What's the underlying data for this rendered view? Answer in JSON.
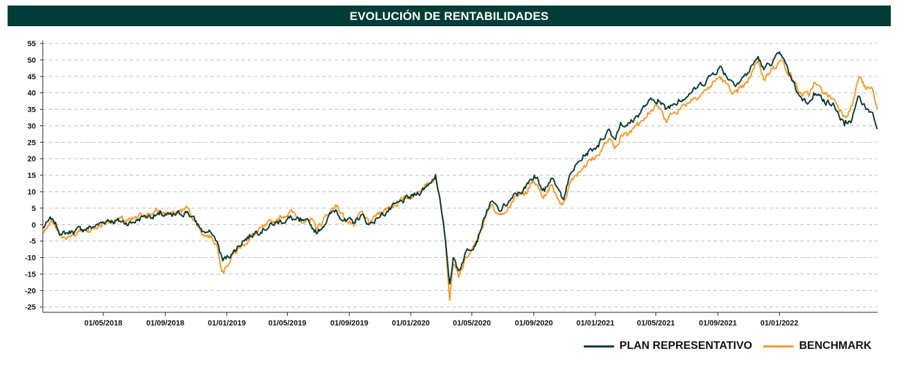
{
  "colors": {
    "title_bg": "#003d36",
    "plan": "#0b3a34",
    "benchmark": "#f59a2e",
    "grid": "#bdbdbd"
  },
  "chart_data": {
    "type": "line",
    "title": "EVOLUCIÓN DE RENTABILIDADES",
    "xlabel": "",
    "ylabel": "",
    "x_range": [
      "2018-01-01",
      "2022-07-15"
    ],
    "ylim": [
      -26,
      55
    ],
    "yticks": [
      55,
      50,
      45,
      40,
      35,
      30,
      25,
      20,
      15,
      10,
      5,
      0,
      -5,
      -10,
      -15,
      -20,
      -25
    ],
    "xticks": [
      "01/05/2018",
      "01/09/2018",
      "01/01/2019",
      "01/05/2019",
      "01/09/2019",
      "01/01/2020",
      "01/05/2020",
      "01/09/2020",
      "01/01/2021",
      "01/05/2021",
      "01/09/2021",
      "01/01/2022"
    ],
    "xtick_dates": [
      "2018-05-01",
      "2018-09-01",
      "2019-01-01",
      "2019-05-01",
      "2019-09-01",
      "2020-01-01",
      "2020-05-01",
      "2020-09-01",
      "2021-01-01",
      "2021-05-01",
      "2021-09-01",
      "2022-01-01"
    ],
    "grid": true,
    "legend_position": "bottom-right",
    "series": [
      {
        "name": "PLAN REPRESENTATIVO",
        "color": "#0b3a34",
        "points": [
          [
            "2018-01-01",
            -1
          ],
          [
            "2018-01-20",
            1.8
          ],
          [
            "2018-02-08",
            -3
          ],
          [
            "2018-03-01",
            -2
          ],
          [
            "2018-03-20",
            -1.5
          ],
          [
            "2018-04-15",
            -0.5
          ],
          [
            "2018-05-10",
            1.5
          ],
          [
            "2018-06-01",
            1
          ],
          [
            "2018-06-25",
            0.5
          ],
          [
            "2018-07-20",
            2.5
          ],
          [
            "2018-08-20",
            3
          ],
          [
            "2018-09-15",
            2.5
          ],
          [
            "2018-10-15",
            4
          ],
          [
            "2018-10-30",
            1
          ],
          [
            "2018-11-15",
            -2
          ],
          [
            "2018-12-01",
            -2.5
          ],
          [
            "2018-12-12",
            -5
          ],
          [
            "2018-12-24",
            -11
          ],
          [
            "2019-01-10",
            -9
          ],
          [
            "2019-02-01",
            -5
          ],
          [
            "2019-03-01",
            -2
          ],
          [
            "2019-04-01",
            0
          ],
          [
            "2019-05-05",
            2
          ],
          [
            "2019-05-25",
            1
          ],
          [
            "2019-06-15",
            0
          ],
          [
            "2019-06-30",
            -2.5
          ],
          [
            "2019-07-20",
            2
          ],
          [
            "2019-08-05",
            4.5
          ],
          [
            "2019-08-25",
            1
          ],
          [
            "2019-09-10",
            0.5
          ],
          [
            "2019-09-25",
            3
          ],
          [
            "2019-10-10",
            0
          ],
          [
            "2019-10-25",
            2
          ],
          [
            "2019-11-15",
            4
          ],
          [
            "2019-12-15",
            7
          ],
          [
            "2020-01-10",
            9
          ],
          [
            "2020-01-31",
            11.5
          ],
          [
            "2020-02-19",
            15
          ],
          [
            "2020-03-01",
            5
          ],
          [
            "2020-03-10",
            -5
          ],
          [
            "2020-03-18",
            -18
          ],
          [
            "2020-03-25",
            -10
          ],
          [
            "2020-04-05",
            -14
          ],
          [
            "2020-04-20",
            -8
          ],
          [
            "2020-05-10",
            -5
          ],
          [
            "2020-05-25",
            2
          ],
          [
            "2020-06-08",
            7
          ],
          [
            "2020-06-25",
            4
          ],
          [
            "2020-07-20",
            8
          ],
          [
            "2020-08-15",
            11
          ],
          [
            "2020-09-02",
            15
          ],
          [
            "2020-09-20",
            11
          ],
          [
            "2020-10-05",
            14
          ],
          [
            "2020-10-28",
            8
          ],
          [
            "2020-11-15",
            16
          ],
          [
            "2020-12-10",
            21
          ],
          [
            "2021-01-05",
            24
          ],
          [
            "2021-01-28",
            29
          ],
          [
            "2021-02-08",
            26
          ],
          [
            "2021-02-20",
            31
          ],
          [
            "2021-03-05",
            30
          ],
          [
            "2021-03-25",
            33
          ],
          [
            "2021-04-15",
            37
          ],
          [
            "2021-05-05",
            38
          ],
          [
            "2021-05-20",
            35
          ],
          [
            "2021-06-15",
            38
          ],
          [
            "2021-07-10",
            40
          ],
          [
            "2021-08-10",
            44
          ],
          [
            "2021-09-05",
            48
          ],
          [
            "2021-09-25",
            44
          ],
          [
            "2021-10-10",
            43
          ],
          [
            "2021-10-30",
            46
          ],
          [
            "2021-11-20",
            51
          ],
          [
            "2021-12-01",
            47
          ],
          [
            "2021-12-20",
            50
          ],
          [
            "2022-01-05",
            51.5
          ],
          [
            "2022-01-25",
            44
          ],
          [
            "2022-02-10",
            39
          ],
          [
            "2022-02-28",
            37
          ],
          [
            "2022-03-10",
            40
          ],
          [
            "2022-03-30",
            38
          ],
          [
            "2022-04-20",
            36
          ],
          [
            "2022-05-10",
            30
          ],
          [
            "2022-05-25",
            32
          ],
          [
            "2022-06-08",
            39
          ],
          [
            "2022-06-22",
            35
          ],
          [
            "2022-07-05",
            34
          ],
          [
            "2022-07-14",
            29
          ]
        ]
      },
      {
        "name": "BENCHMARK",
        "color": "#f59a2e",
        "points": [
          [
            "2018-01-01",
            -2
          ],
          [
            "2018-01-20",
            1
          ],
          [
            "2018-02-08",
            -4
          ],
          [
            "2018-03-01",
            -3
          ],
          [
            "2018-03-20",
            -2
          ],
          [
            "2018-04-15",
            -1
          ],
          [
            "2018-05-10",
            1
          ],
          [
            "2018-06-01",
            1.5
          ],
          [
            "2018-06-25",
            1
          ],
          [
            "2018-07-20",
            3
          ],
          [
            "2018-08-20",
            4
          ],
          [
            "2018-09-15",
            3
          ],
          [
            "2018-10-15",
            5
          ],
          [
            "2018-10-30",
            1.5
          ],
          [
            "2018-11-15",
            -3
          ],
          [
            "2018-12-01",
            -3.5
          ],
          [
            "2018-12-12",
            -6
          ],
          [
            "2018-12-24",
            -14
          ],
          [
            "2019-01-10",
            -10
          ],
          [
            "2019-02-01",
            -6
          ],
          [
            "2019-03-01",
            -2.5
          ],
          [
            "2019-04-01",
            0.5
          ],
          [
            "2019-05-05",
            4
          ],
          [
            "2019-05-25",
            2
          ],
          [
            "2019-06-15",
            1
          ],
          [
            "2019-06-30",
            -1
          ],
          [
            "2019-07-20",
            3
          ],
          [
            "2019-08-05",
            6
          ],
          [
            "2019-08-25",
            1.5
          ],
          [
            "2019-09-10",
            -0.5
          ],
          [
            "2019-09-25",
            4
          ],
          [
            "2019-10-10",
            0
          ],
          [
            "2019-10-25",
            3
          ],
          [
            "2019-11-15",
            5
          ],
          [
            "2019-12-15",
            7.5
          ],
          [
            "2020-01-10",
            9.5
          ],
          [
            "2020-01-31",
            12
          ],
          [
            "2020-02-19",
            15.5
          ],
          [
            "2020-03-01",
            6
          ],
          [
            "2020-03-10",
            -6
          ],
          [
            "2020-03-18",
            -23
          ],
          [
            "2020-03-25",
            -12
          ],
          [
            "2020-04-05",
            -16
          ],
          [
            "2020-04-20",
            -10
          ],
          [
            "2020-05-10",
            -6
          ],
          [
            "2020-05-25",
            1
          ],
          [
            "2020-06-08",
            6
          ],
          [
            "2020-06-25",
            3
          ],
          [
            "2020-07-20",
            7
          ],
          [
            "2020-08-15",
            10
          ],
          [
            "2020-09-02",
            13
          ],
          [
            "2020-09-20",
            8
          ],
          [
            "2020-10-05",
            12
          ],
          [
            "2020-10-28",
            6
          ],
          [
            "2020-11-15",
            14
          ],
          [
            "2020-12-10",
            18
          ],
          [
            "2021-01-05",
            21
          ],
          [
            "2021-01-28",
            26
          ],
          [
            "2021-02-08",
            23
          ],
          [
            "2021-02-20",
            27
          ],
          [
            "2021-03-05",
            27
          ],
          [
            "2021-03-25",
            31
          ],
          [
            "2021-04-15",
            34
          ],
          [
            "2021-05-05",
            36
          ],
          [
            "2021-05-20",
            32
          ],
          [
            "2021-06-15",
            35
          ],
          [
            "2021-07-10",
            38
          ],
          [
            "2021-08-10",
            41
          ],
          [
            "2021-09-05",
            45
          ],
          [
            "2021-09-25",
            41
          ],
          [
            "2021-10-10",
            40
          ],
          [
            "2021-10-30",
            43
          ],
          [
            "2021-11-20",
            50
          ],
          [
            "2021-12-01",
            44
          ],
          [
            "2021-12-20",
            48
          ],
          [
            "2022-01-05",
            50
          ],
          [
            "2022-01-25",
            45
          ],
          [
            "2022-02-10",
            40
          ],
          [
            "2022-02-28",
            39
          ],
          [
            "2022-03-10",
            43
          ],
          [
            "2022-03-30",
            40
          ],
          [
            "2022-04-20",
            38
          ],
          [
            "2022-05-10",
            33
          ],
          [
            "2022-05-25",
            36
          ],
          [
            "2022-06-08",
            45
          ],
          [
            "2022-06-22",
            41
          ],
          [
            "2022-07-05",
            41
          ],
          [
            "2022-07-14",
            35
          ]
        ]
      }
    ]
  }
}
